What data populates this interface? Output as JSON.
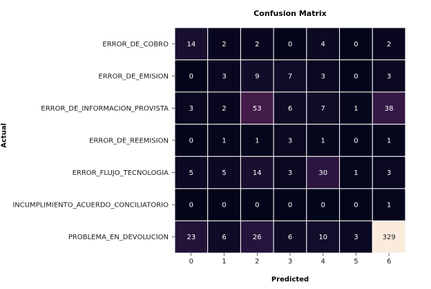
{
  "chart_data": {
    "type": "heatmap",
    "title": "Confusion Matrix",
    "xlabel": "Predicted",
    "ylabel": "Actual",
    "row_labels": [
      "ERROR_DE_COBRO",
      "ERROR_DE_EMISION",
      "ERROR_DE_INFORMACION_PROVISTA",
      "ERROR_DE_REEMISION",
      "ERROR_FLUJO_TECNOLOGIA",
      "INCUMPLIMIENTO_ACUERDO_CONCILIATORIO",
      "PROBLEMA_EN_DEVOLUCION"
    ],
    "col_labels": [
      "0",
      "1",
      "2",
      "3",
      "4",
      "5",
      "6"
    ],
    "values": [
      [
        14,
        2,
        2,
        0,
        4,
        0,
        2
      ],
      [
        0,
        3,
        9,
        7,
        3,
        0,
        3
      ],
      [
        3,
        2,
        53,
        6,
        7,
        1,
        38
      ],
      [
        0,
        1,
        1,
        3,
        1,
        0,
        1
      ],
      [
        5,
        5,
        14,
        3,
        30,
        1,
        3
      ],
      [
        0,
        0,
        0,
        0,
        0,
        0,
        1
      ],
      [
        23,
        6,
        26,
        6,
        10,
        3,
        329
      ]
    ],
    "colormap": [
      "#03051a",
      "#2b1640",
      "#5a2253",
      "#9e2d5a",
      "#e0534a",
      "#f5987a",
      "#faebdd"
    ],
    "grid": false,
    "legend": "none"
  }
}
